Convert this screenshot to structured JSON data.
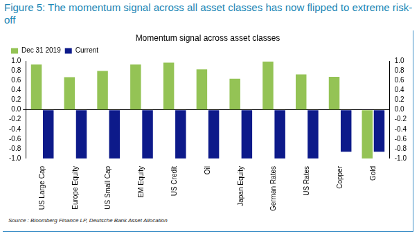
{
  "chart_data": {
    "type": "bar",
    "title": "Figure 5: The momentum signal across all asset classes has now flipped to extreme risk-off",
    "subtitle": "Momentum signal across asset classes",
    "source": "Source : Bloomberg Finance LP, Deutsche Bank Asset Allocation",
    "categories": [
      "US Large Cap",
      "Europe Equity",
      "US Small Cap",
      "EM Equity",
      "US Credit",
      "Oil",
      "Japan Equity",
      "German Rates",
      "US Rates",
      "Copper",
      "Gold"
    ],
    "series": [
      {
        "name": "Dec 31 2019",
        "color": "#94c355",
        "values": [
          0.93,
          0.67,
          0.8,
          0.93,
          0.97,
          0.83,
          0.64,
          0.99,
          0.73,
          0.68,
          -1.0
        ]
      },
      {
        "name": "Current",
        "color": "#0d1a8a",
        "values": [
          -1.0,
          -1.0,
          -1.0,
          -1.0,
          -1.0,
          -1.0,
          -1.0,
          -1.0,
          -1.0,
          -0.86,
          -0.86
        ]
      }
    ],
    "ylim": [
      -1.0,
      1.0
    ],
    "yticks": [
      {
        "value": -1.0,
        "label": "-1.0"
      },
      {
        "value": -0.8,
        "label": "-0.8"
      },
      {
        "value": -0.6,
        "label": "-0.6"
      },
      {
        "value": -0.4,
        "label": "-0.4"
      },
      {
        "value": -0.2,
        "label": "-0.2"
      },
      {
        "value": 0,
        "label": "0.0"
      },
      {
        "value": 0.2,
        "label": "0.2"
      },
      {
        "value": 0.4,
        "label": "0.4"
      },
      {
        "value": 0.6,
        "label": "0.6"
      },
      {
        "value": 0.8,
        "label": "0.8"
      },
      {
        "value": 1.0,
        "label": "1.0"
      }
    ],
    "y2lim": [
      -1.0,
      1.0
    ],
    "y2ticks": [
      {
        "value": -1.0,
        "label": "-1.0"
      },
      {
        "value": -0.8,
        "label": "-0.8"
      },
      {
        "value": -0.6,
        "label": "-0.6"
      },
      {
        "value": -0.4,
        "label": "-0.4"
      },
      {
        "value": -0.2,
        "label": "-0.2"
      },
      {
        "value": 0,
        "label": "0.0"
      },
      {
        "value": 0.2,
        "label": "0.2"
      },
      {
        "value": 0.4,
        "label": "0.4"
      },
      {
        "value": 0.6,
        "label": "0.6"
      },
      {
        "value": 0.8,
        "label": "0.8"
      },
      {
        "value": 1.0,
        "label": "1.0"
      }
    ],
    "grid": false,
    "legend": "top-left"
  }
}
